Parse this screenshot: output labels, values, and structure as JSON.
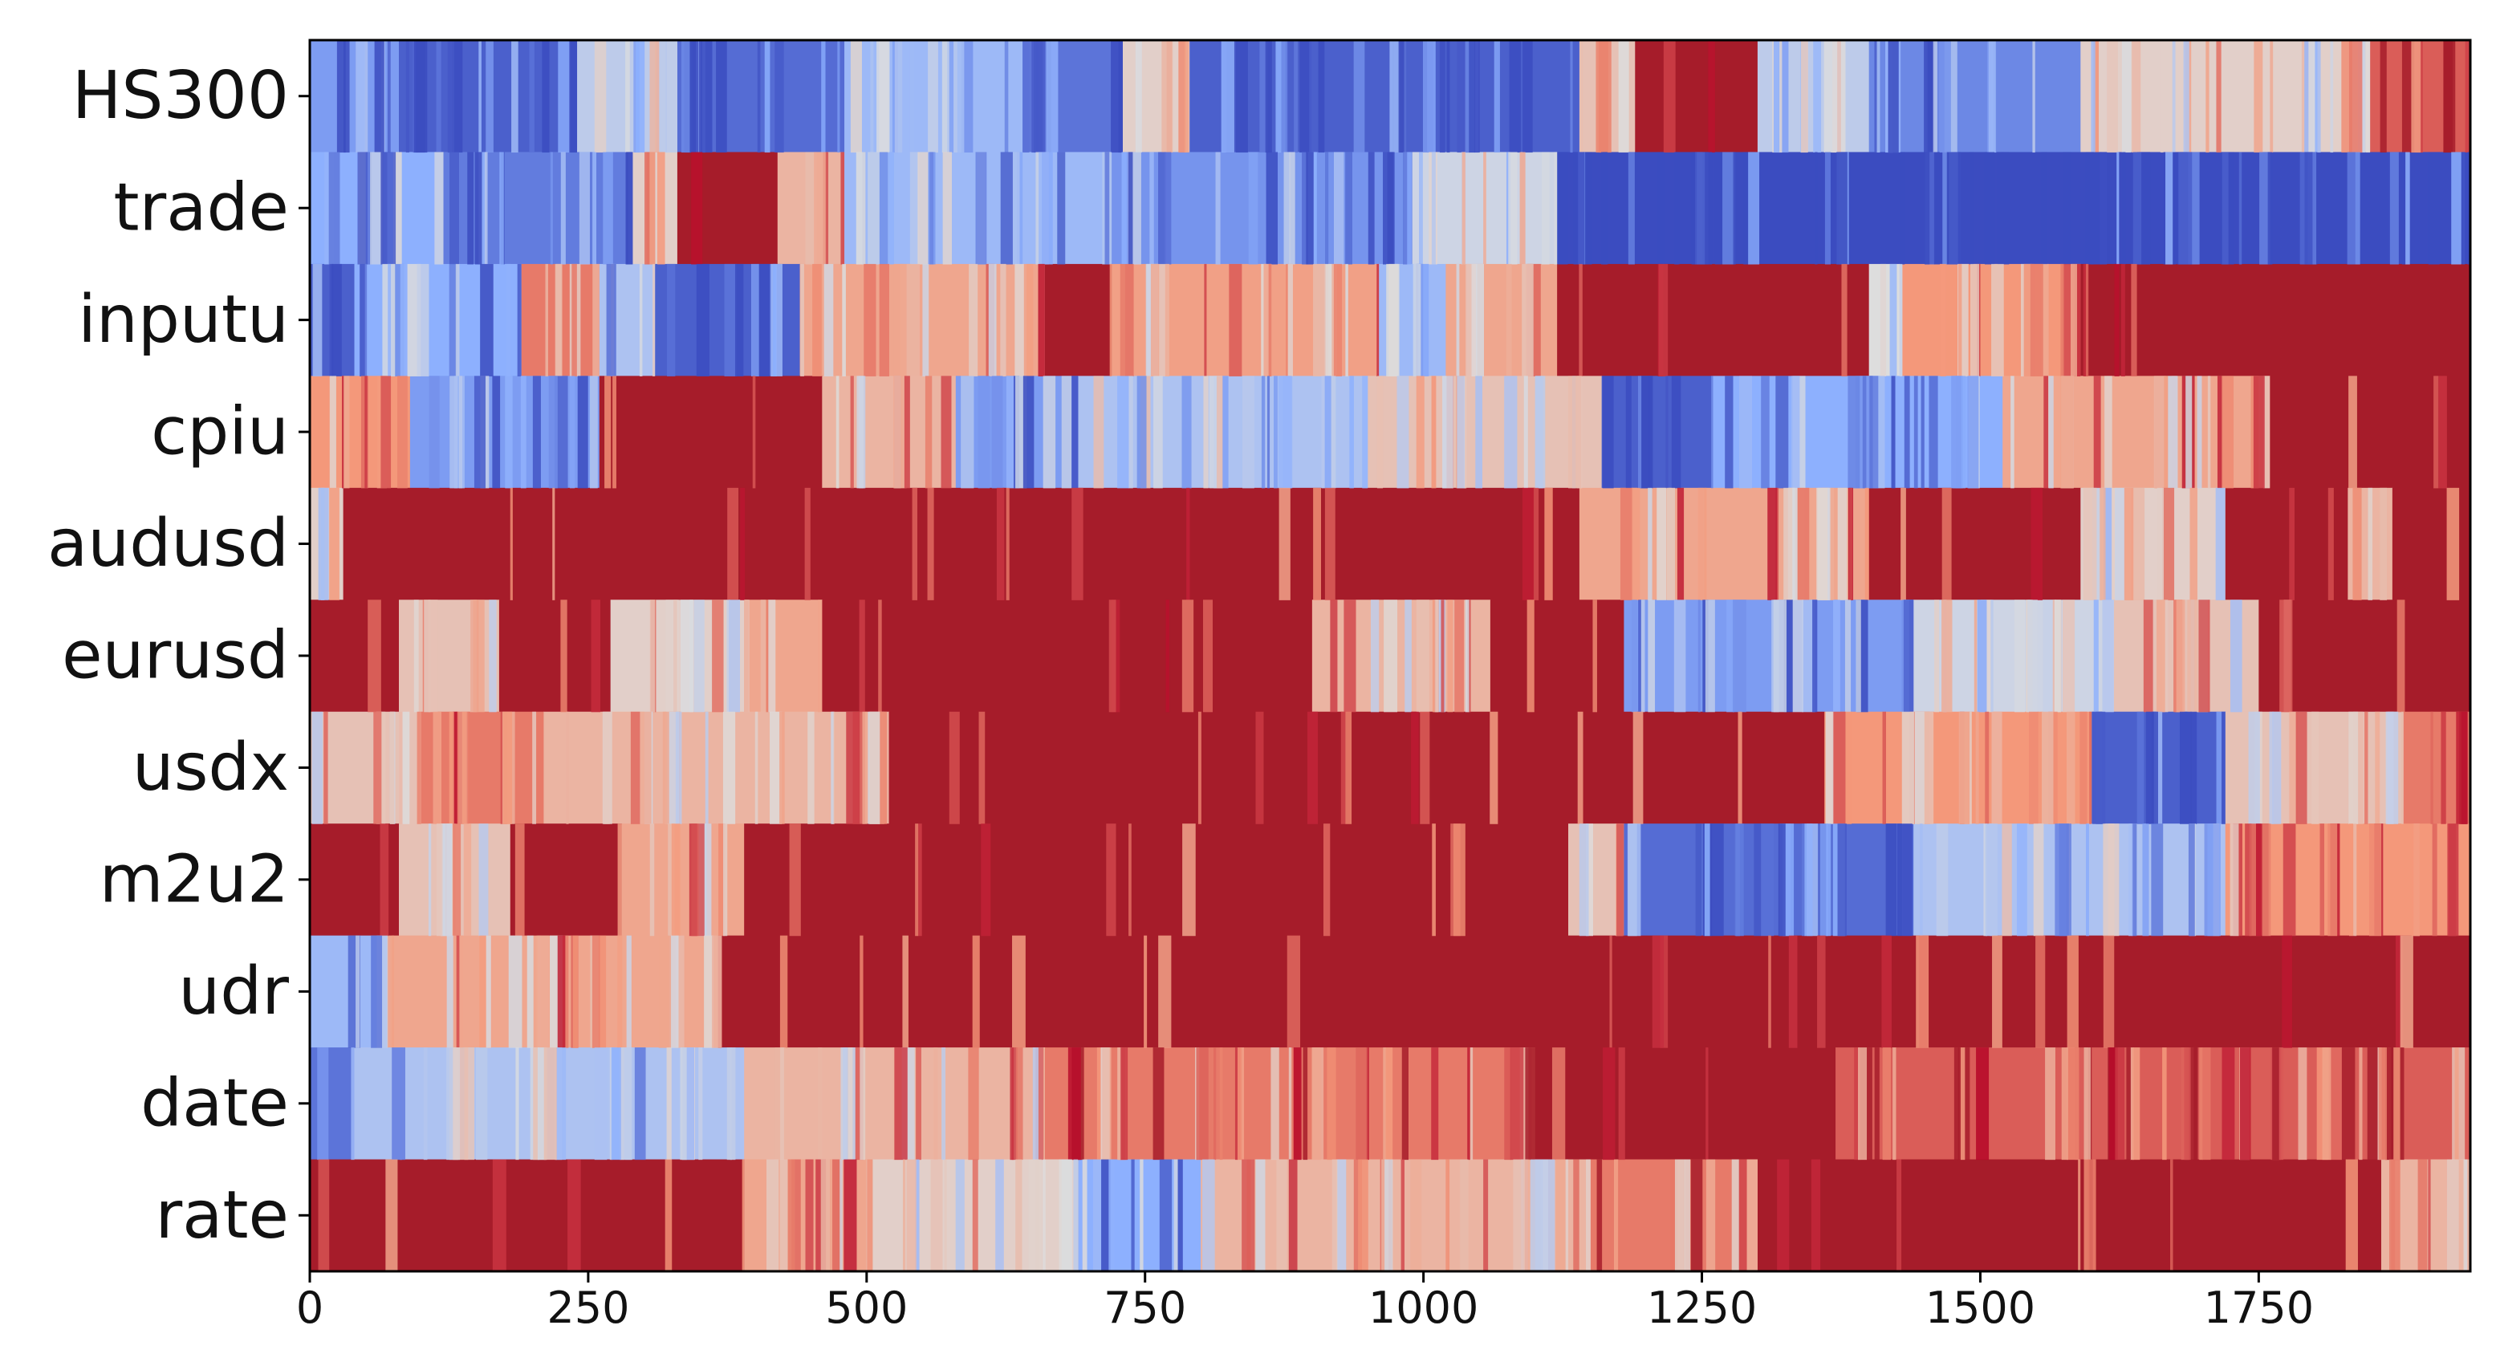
{
  "chart_data": {
    "type": "heatmap",
    "title": "",
    "xlabel": "",
    "ylabel": "",
    "colormap": "coolwarm",
    "colormap_stops": [
      "#3b4cc0",
      "#8db0fe",
      "#dddddd",
      "#f4987a",
      "#b40426"
    ],
    "clipped_high_color": "#a61c2a",
    "rows": [
      "HS300",
      "trade",
      "inputu",
      "cpiu",
      "audusd",
      "eurusd",
      "usdx",
      "m2u2",
      "udr",
      "date",
      "rate"
    ],
    "xlim": [
      0,
      1940
    ],
    "xticks": [
      0,
      250,
      500,
      750,
      1000,
      1250,
      1500,
      1750
    ],
    "xtick_labels": [
      "0",
      "250",
      "500",
      "750",
      "1000",
      "1250",
      "1500",
      "1750"
    ],
    "value_range": [
      0,
      1
    ],
    "series": [
      {
        "name": "HS300",
        "segments": [
          {
            "start": 0,
            "end": 80,
            "value": 0.2
          },
          {
            "start": 80,
            "end": 240,
            "value": 0.05
          },
          {
            "start": 240,
            "end": 330,
            "value": 0.4
          },
          {
            "start": 330,
            "end": 480,
            "value": 0.08
          },
          {
            "start": 480,
            "end": 640,
            "value": 0.3
          },
          {
            "start": 640,
            "end": 730,
            "value": 0.1
          },
          {
            "start": 730,
            "end": 790,
            "value": 0.55
          },
          {
            "start": 790,
            "end": 1140,
            "value": 0.05
          },
          {
            "start": 1140,
            "end": 1190,
            "value": 0.6
          },
          {
            "start": 1190,
            "end": 1300,
            "value": 1.0
          },
          {
            "start": 1300,
            "end": 1400,
            "value": 0.4
          },
          {
            "start": 1400,
            "end": 1590,
            "value": 0.15
          },
          {
            "start": 1590,
            "end": 1850,
            "value": 0.55
          },
          {
            "start": 1850,
            "end": 1940,
            "value": 0.85
          }
        ]
      },
      {
        "name": "trade",
        "segments": [
          {
            "start": 0,
            "end": 120,
            "value": 0.25
          },
          {
            "start": 120,
            "end": 290,
            "value": 0.12
          },
          {
            "start": 290,
            "end": 330,
            "value": 0.55
          },
          {
            "start": 330,
            "end": 420,
            "value": 1.0
          },
          {
            "start": 420,
            "end": 480,
            "value": 0.65
          },
          {
            "start": 480,
            "end": 720,
            "value": 0.3
          },
          {
            "start": 720,
            "end": 990,
            "value": 0.18
          },
          {
            "start": 990,
            "end": 1120,
            "value": 0.45
          },
          {
            "start": 1120,
            "end": 1940,
            "value": 0.0
          }
        ]
      },
      {
        "name": "inputu",
        "segments": [
          {
            "start": 0,
            "end": 40,
            "value": 0.05
          },
          {
            "start": 40,
            "end": 190,
            "value": 0.25
          },
          {
            "start": 190,
            "end": 260,
            "value": 0.8
          },
          {
            "start": 260,
            "end": 310,
            "value": 0.35
          },
          {
            "start": 310,
            "end": 440,
            "value": 0.05
          },
          {
            "start": 440,
            "end": 660,
            "value": 0.7
          },
          {
            "start": 660,
            "end": 720,
            "value": 1.0
          },
          {
            "start": 720,
            "end": 960,
            "value": 0.72
          },
          {
            "start": 960,
            "end": 1020,
            "value": 0.3
          },
          {
            "start": 1020,
            "end": 1120,
            "value": 0.7
          },
          {
            "start": 1120,
            "end": 1400,
            "value": 1.0
          },
          {
            "start": 1400,
            "end": 1430,
            "value": 0.5
          },
          {
            "start": 1430,
            "end": 1590,
            "value": 0.75
          },
          {
            "start": 1590,
            "end": 1940,
            "value": 1.0
          }
        ]
      },
      {
        "name": "cpiu",
        "segments": [
          {
            "start": 0,
            "end": 90,
            "value": 0.75
          },
          {
            "start": 90,
            "end": 260,
            "value": 0.2
          },
          {
            "start": 260,
            "end": 460,
            "value": 1.0
          },
          {
            "start": 460,
            "end": 580,
            "value": 0.65
          },
          {
            "start": 580,
            "end": 690,
            "value": 0.2
          },
          {
            "start": 690,
            "end": 950,
            "value": 0.35
          },
          {
            "start": 950,
            "end": 1160,
            "value": 0.6
          },
          {
            "start": 1160,
            "end": 1260,
            "value": 0.05
          },
          {
            "start": 1260,
            "end": 1520,
            "value": 0.25
          },
          {
            "start": 1520,
            "end": 1760,
            "value": 0.7
          },
          {
            "start": 1760,
            "end": 1940,
            "value": 1.0
          }
        ]
      },
      {
        "name": "audusd",
        "segments": [
          {
            "start": 0,
            "end": 30,
            "value": 0.55
          },
          {
            "start": 30,
            "end": 1140,
            "value": 1.0
          },
          {
            "start": 1140,
            "end": 1400,
            "value": 0.7
          },
          {
            "start": 1400,
            "end": 1590,
            "value": 1.0
          },
          {
            "start": 1590,
            "end": 1720,
            "value": 0.55
          },
          {
            "start": 1720,
            "end": 1830,
            "value": 1.0
          },
          {
            "start": 1830,
            "end": 1870,
            "value": 0.65
          },
          {
            "start": 1870,
            "end": 1940,
            "value": 1.0
          }
        ]
      },
      {
        "name": "eurusd",
        "segments": [
          {
            "start": 0,
            "end": 80,
            "value": 1.0
          },
          {
            "start": 80,
            "end": 170,
            "value": 0.6
          },
          {
            "start": 170,
            "end": 270,
            "value": 1.0
          },
          {
            "start": 270,
            "end": 390,
            "value": 0.55
          },
          {
            "start": 390,
            "end": 460,
            "value": 0.7
          },
          {
            "start": 460,
            "end": 900,
            "value": 1.0
          },
          {
            "start": 900,
            "end": 1060,
            "value": 0.65
          },
          {
            "start": 1060,
            "end": 1180,
            "value": 1.0
          },
          {
            "start": 1180,
            "end": 1440,
            "value": 0.2
          },
          {
            "start": 1440,
            "end": 1620,
            "value": 0.45
          },
          {
            "start": 1620,
            "end": 1750,
            "value": 0.6
          },
          {
            "start": 1750,
            "end": 1940,
            "value": 1.0
          }
        ]
      },
      {
        "name": "usdx",
        "segments": [
          {
            "start": 0,
            "end": 100,
            "value": 0.6
          },
          {
            "start": 100,
            "end": 210,
            "value": 0.8
          },
          {
            "start": 210,
            "end": 520,
            "value": 0.65
          },
          {
            "start": 520,
            "end": 1360,
            "value": 1.0
          },
          {
            "start": 1360,
            "end": 1600,
            "value": 0.75
          },
          {
            "start": 1600,
            "end": 1720,
            "value": 0.05
          },
          {
            "start": 1720,
            "end": 1880,
            "value": 0.6
          },
          {
            "start": 1880,
            "end": 1940,
            "value": 0.8
          }
        ]
      },
      {
        "name": "m2u2",
        "segments": [
          {
            "start": 0,
            "end": 80,
            "value": 1.0
          },
          {
            "start": 80,
            "end": 180,
            "value": 0.6
          },
          {
            "start": 180,
            "end": 280,
            "value": 1.0
          },
          {
            "start": 280,
            "end": 390,
            "value": 0.7
          },
          {
            "start": 390,
            "end": 680,
            "value": 1.0
          },
          {
            "start": 680,
            "end": 1130,
            "value": 1.0
          },
          {
            "start": 1130,
            "end": 1180,
            "value": 0.6
          },
          {
            "start": 1180,
            "end": 1440,
            "value": 0.08
          },
          {
            "start": 1440,
            "end": 1720,
            "value": 0.35
          },
          {
            "start": 1720,
            "end": 1940,
            "value": 0.75
          }
        ]
      },
      {
        "name": "udr",
        "segments": [
          {
            "start": 0,
            "end": 70,
            "value": 0.3
          },
          {
            "start": 70,
            "end": 370,
            "value": 0.7
          },
          {
            "start": 370,
            "end": 1940,
            "value": 1.0
          }
        ]
      },
      {
        "name": "date",
        "segments": [
          {
            "start": 0,
            "end": 40,
            "value": 0.1
          },
          {
            "start": 40,
            "end": 390,
            "value": 0.35
          },
          {
            "start": 390,
            "end": 660,
            "value": 0.65
          },
          {
            "start": 660,
            "end": 1100,
            "value": 0.8
          },
          {
            "start": 1100,
            "end": 1370,
            "value": 1.0
          },
          {
            "start": 1370,
            "end": 1940,
            "value": 0.85
          }
        ]
      },
      {
        "name": "rate",
        "segments": [
          {
            "start": 0,
            "end": 390,
            "value": 1.0
          },
          {
            "start": 390,
            "end": 500,
            "value": 0.7
          },
          {
            "start": 500,
            "end": 690,
            "value": 0.55
          },
          {
            "start": 690,
            "end": 800,
            "value": 0.25
          },
          {
            "start": 800,
            "end": 1150,
            "value": 0.65
          },
          {
            "start": 1150,
            "end": 1300,
            "value": 0.8
          },
          {
            "start": 1300,
            "end": 1860,
            "value": 1.0
          },
          {
            "start": 1860,
            "end": 1940,
            "value": 0.65
          }
        ]
      }
    ]
  }
}
